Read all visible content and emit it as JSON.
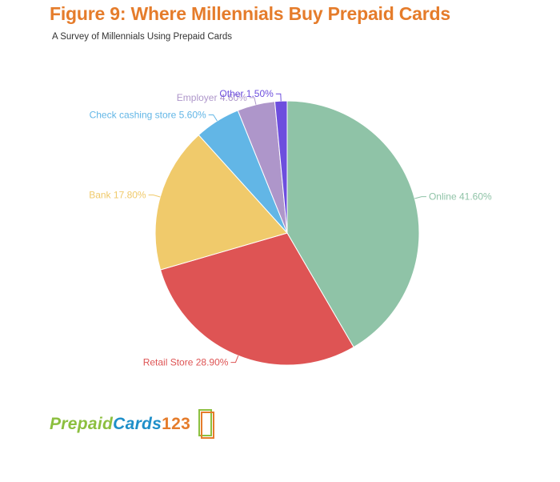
{
  "header": {
    "title": "Figure 9: Where Millennials Buy Prepaid Cards",
    "subtitle": "A Survey of Millennials Using Prepaid Cards"
  },
  "chart_data": {
    "type": "pie",
    "slices": [
      {
        "label": "Online",
        "value": 41.6,
        "display": "Online 41.60%",
        "color": "#8fc3a7"
      },
      {
        "label": "Retail Store",
        "value": 28.9,
        "display": "Retail Store 28.90%",
        "color": "#de5454"
      },
      {
        "label": "Bank",
        "value": 17.8,
        "display": "Bank 17.80%",
        "color": "#f0ca6b"
      },
      {
        "label": "Check cashing store",
        "value": 5.6,
        "display": "Check cashing store 5.60%",
        "color": "#62b6e6"
      },
      {
        "label": "Employer",
        "value": 4.6,
        "display": "Employer 4.60%",
        "color": "#ae96ca"
      },
      {
        "label": "Other",
        "value": 1.5,
        "display": "Other 1.50%",
        "color": "#6d4ede"
      }
    ],
    "start_angle_deg": 0,
    "direction": "clockwise",
    "legend": "none"
  },
  "logo": {
    "part1": "Prepaid",
    "part2": "Cards",
    "part3": "123"
  }
}
